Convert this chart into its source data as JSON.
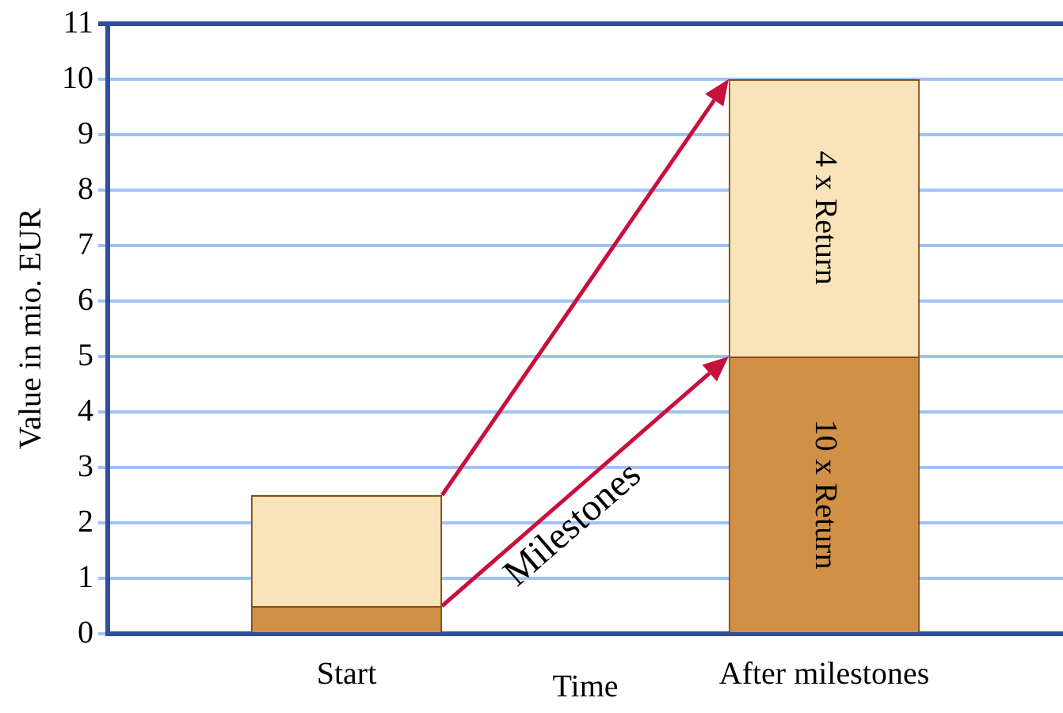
{
  "chart_data": {
    "type": "bar",
    "stacked": true,
    "categories": [
      "Start",
      "After milestones"
    ],
    "series": [
      {
        "color": "#d09045",
        "values": [
          0.5,
          5
        ]
      },
      {
        "color": "#f8e4b8",
        "values": [
          2,
          5
        ]
      }
    ],
    "xlabel": "Time",
    "ylabel": "Value in mio. EUR",
    "ylim": [
      0,
      11
    ],
    "yticks": [
      0,
      1,
      2,
      3,
      4,
      5,
      6,
      7,
      8,
      9,
      10,
      11
    ],
    "grid": "y",
    "legend": false,
    "annotations": [
      "10 x Return",
      "4 x Return",
      "Milestones"
    ]
  }
}
